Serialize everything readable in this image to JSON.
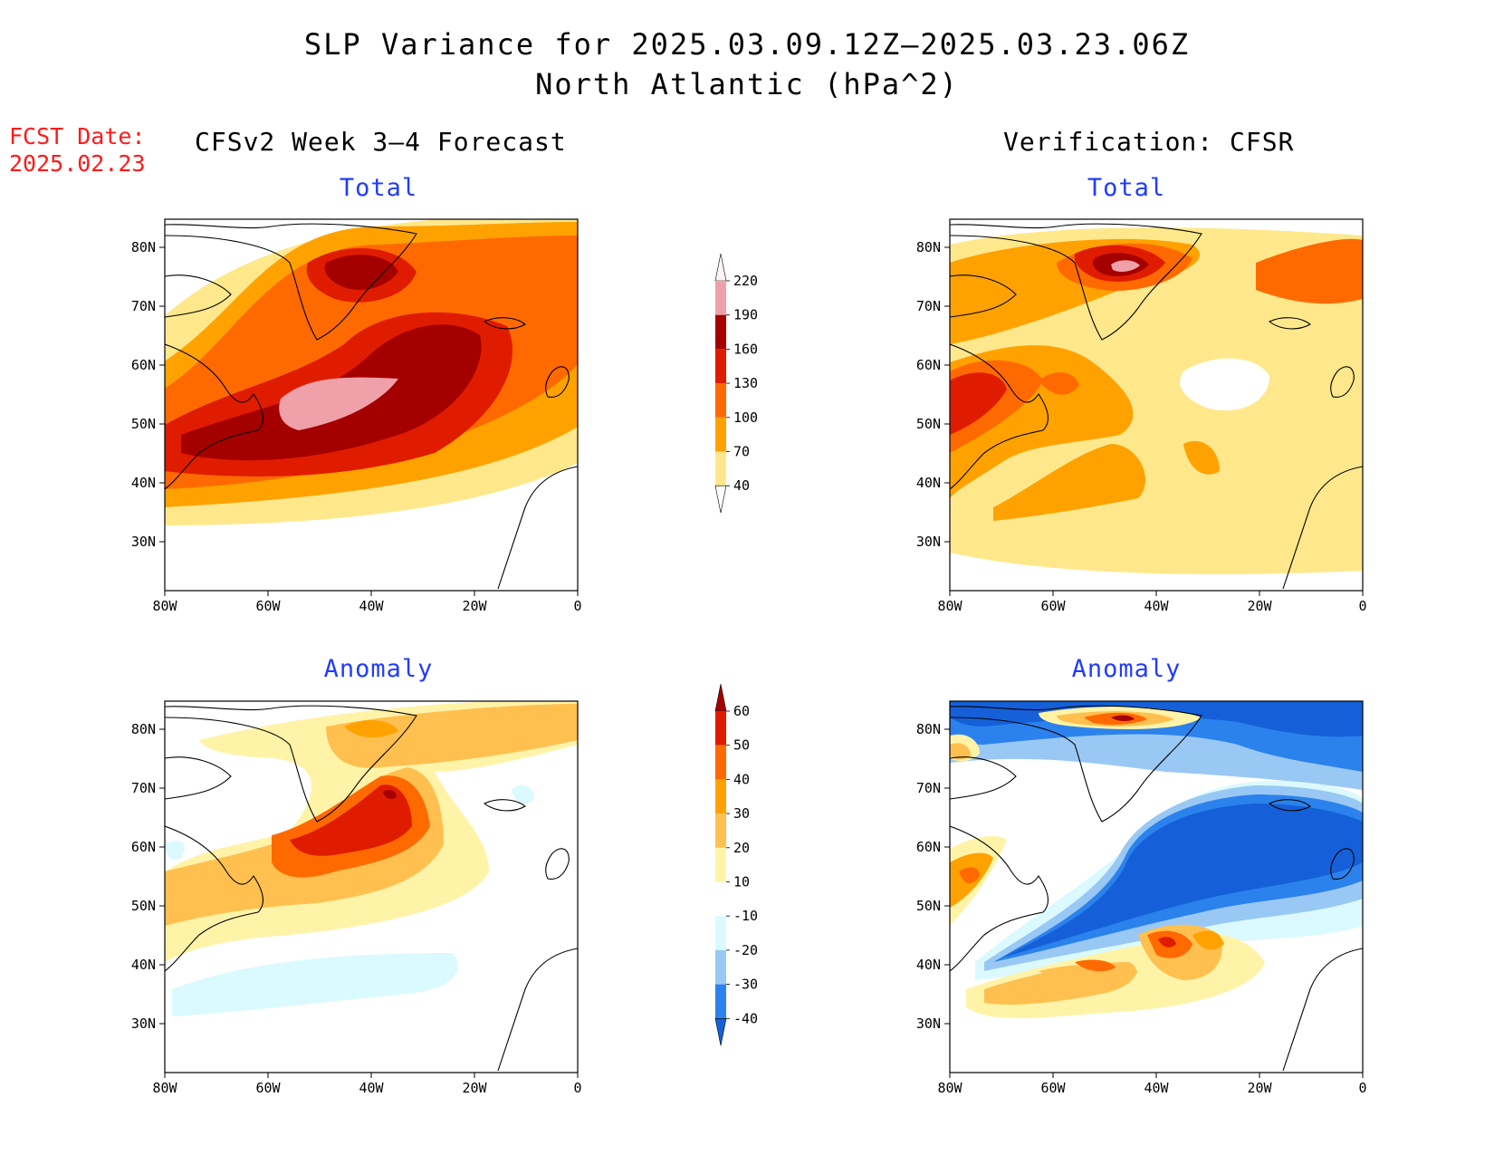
{
  "header": {
    "title_line1": "SLP Variance for 2025.03.09.12Z–2025.03.23.06Z",
    "title_line2": "North Atlantic (hPa^2)",
    "fcst_label": "FCST Date:",
    "fcst_date": "2025.02.23",
    "left_column_title": "CFSv2 Week 3–4 Forecast",
    "right_column_title": "Verification: CFSR"
  },
  "panels": {
    "forecast_total": {
      "title": "Total"
    },
    "verification_total": {
      "title": "Total"
    },
    "forecast_anomaly": {
      "title": "Anomaly"
    },
    "verification_anomaly": {
      "title": "Anomaly"
    }
  },
  "axes": {
    "x_ticks": [
      "80W",
      "60W",
      "40W",
      "20W",
      "0"
    ],
    "y_ticks": [
      "80N",
      "70N",
      "60N",
      "50N",
      "40N",
      "30N"
    ]
  },
  "colorbars": {
    "total": {
      "labels": [
        "40",
        "70",
        "100",
        "130",
        "160",
        "190",
        "220"
      ],
      "colors": [
        "#ffffff",
        "#ffe88c",
        "#ffa200",
        "#ff6a00",
        "#e01c00",
        "#a50000",
        "#f0a0a8",
        "#fff4f4"
      ]
    },
    "anomaly": {
      "labels": [
        "-40",
        "-30",
        "-20",
        "-10",
        "10",
        "20",
        "30",
        "40",
        "50",
        "60"
      ],
      "colors": [
        "#1560d8",
        "#2b82ec",
        "#9ac8f4",
        "#dafaff",
        "#ffffff",
        "#fff3a8",
        "#ffc050",
        "#ffa200",
        "#ff6a00",
        "#e01c00",
        "#a50000"
      ]
    }
  }
}
